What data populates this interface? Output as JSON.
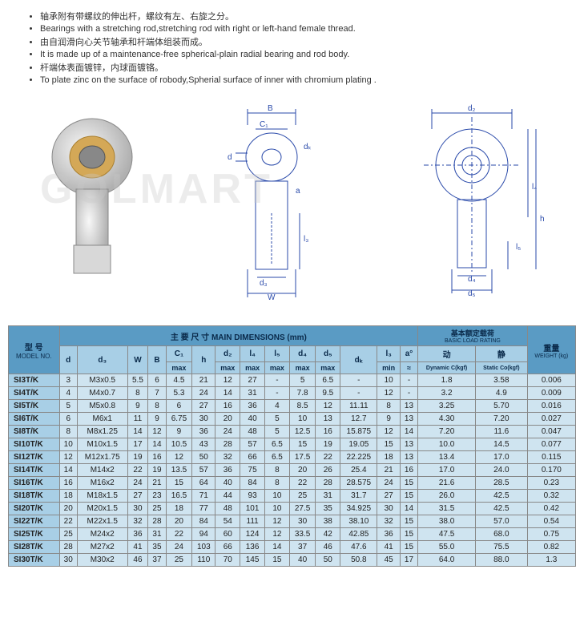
{
  "bullets": [
    "轴承附有带螺纹的伸出杆，螺纹有左、右旋之分。",
    "Bearings with a stretching rod,stretching rod with right or left-hand female thread.",
    "由自润滑向心关节轴承和杆端体组装而成。",
    "It is made up of a maintenance-free spherical-plain  radial bearing and rod body.",
    "杆端体表面镀锌，内球面镀铬。",
    "To plate zinc on the surface of robody,Spherial surface of inner with chromium plating ."
  ],
  "watermark": "GOLMART",
  "diagram_labels": {
    "b": "B",
    "c1": "C₁",
    "d": "d",
    "dk": "dₖ",
    "a": "a",
    "l3": "l₃",
    "d3": "d₃",
    "w": "W",
    "d2": "d₂",
    "l4": "l₄",
    "h": "h",
    "l5": "l₅",
    "d4": "d₄",
    "d5": "d₅"
  },
  "table": {
    "group_headers": {
      "model": "型 号",
      "model_sub": "MODEL NO.",
      "main": "主 要 尺 寸   MAIN DIMENSIONS  (mm)",
      "load": "基本额定载荷",
      "load_sub": "BASIC LOAD RATING",
      "weight": "重量",
      "weight_sub": "WEIGHT (kg)"
    },
    "cols": [
      "d",
      "d₃",
      "W",
      "B",
      "C₁",
      "h",
      "d₂",
      "l₄",
      "l₅",
      "d₄",
      "d₅",
      "dₖ",
      "l₃",
      "a°",
      "动",
      "静",
      ""
    ],
    "cols_sub": [
      "",
      "",
      "",
      "",
      "max",
      "",
      "max",
      "max",
      "max",
      "max",
      "max",
      "",
      "min",
      "≈",
      "Dynamic C(kgf)",
      "Static Co(kgf)",
      ""
    ],
    "load_cols": {
      "dyn": "动",
      "dyn_sub": "Dynamic C(kgf)",
      "stat": "静",
      "stat_sub": "Static Co(kgf)"
    },
    "rows": [
      {
        "m": "SI3T/K",
        "v": [
          "3",
          "M3x0.5",
          "5.5",
          "6",
          "4.5",
          "21",
          "12",
          "27",
          "-",
          "5",
          "6.5",
          "-",
          "10",
          "-",
          "1.8",
          "3.58",
          "0.006"
        ]
      },
      {
        "m": "SI4T/K",
        "v": [
          "4",
          "M4x0.7",
          "8",
          "7",
          "5.3",
          "24",
          "14",
          "31",
          "-",
          "7.8",
          "9.5",
          "-",
          "12",
          "-",
          "3.2",
          "4.9",
          "0.009"
        ]
      },
      {
        "m": "SI5T/K",
        "v": [
          "5",
          "M5x0.8",
          "9",
          "8",
          "6",
          "27",
          "16",
          "36",
          "4",
          "8.5",
          "12",
          "11.11",
          "8",
          "13",
          "3.25",
          "5.70",
          "0.016"
        ]
      },
      {
        "m": "SI6T/K",
        "v": [
          "6",
          "M6x1",
          "11",
          "9",
          "6.75",
          "30",
          "20",
          "40",
          "5",
          "10",
          "13",
          "12.7",
          "9",
          "13",
          "4.30",
          "7.20",
          "0.027"
        ]
      },
      {
        "m": "SI8T/K",
        "v": [
          "8",
          "M8x1.25",
          "14",
          "12",
          "9",
          "36",
          "24",
          "48",
          "5",
          "12.5",
          "16",
          "15.875",
          "12",
          "14",
          "7.20",
          "11.6",
          "0.047"
        ]
      },
      {
        "m": "SI10T/K",
        "v": [
          "10",
          "M10x1.5",
          "17",
          "14",
          "10.5",
          "43",
          "28",
          "57",
          "6.5",
          "15",
          "19",
          "19.05",
          "15",
          "13",
          "10.0",
          "14.5",
          "0.077"
        ]
      },
      {
        "m": "SI12T/K",
        "v": [
          "12",
          "M12x1.75",
          "19",
          "16",
          "12",
          "50",
          "32",
          "66",
          "6.5",
          "17.5",
          "22",
          "22.225",
          "18",
          "13",
          "13.4",
          "17.0",
          "0.115"
        ]
      },
      {
        "m": "SI14T/K",
        "v": [
          "14",
          "M14x2",
          "22",
          "19",
          "13.5",
          "57",
          "36",
          "75",
          "8",
          "20",
          "26",
          "25.4",
          "21",
          "16",
          "17.0",
          "24.0",
          "0.170"
        ]
      },
      {
        "m": "SI16T/K",
        "v": [
          "16",
          "M16x2",
          "24",
          "21",
          "15",
          "64",
          "40",
          "84",
          "8",
          "22",
          "28",
          "28.575",
          "24",
          "15",
          "21.6",
          "28.5",
          "0.23"
        ]
      },
      {
        "m": "SI18T/K",
        "v": [
          "18",
          "M18x1.5",
          "27",
          "23",
          "16.5",
          "71",
          "44",
          "93",
          "10",
          "25",
          "31",
          "31.7",
          "27",
          "15",
          "26.0",
          "42.5",
          "0.32"
        ]
      },
      {
        "m": "SI20T/K",
        "v": [
          "20",
          "M20x1.5",
          "30",
          "25",
          "18",
          "77",
          "48",
          "101",
          "10",
          "27.5",
          "35",
          "34.925",
          "30",
          "14",
          "31.5",
          "42.5",
          "0.42"
        ]
      },
      {
        "m": "SI22T/K",
        "v": [
          "22",
          "M22x1.5",
          "32",
          "28",
          "20",
          "84",
          "54",
          "111",
          "12",
          "30",
          "38",
          "38.10",
          "32",
          "15",
          "38.0",
          "57.0",
          "0.54"
        ]
      },
      {
        "m": "SI25T/K",
        "v": [
          "25",
          "M24x2",
          "36",
          "31",
          "22",
          "94",
          "60",
          "124",
          "12",
          "33.5",
          "42",
          "42.85",
          "36",
          "15",
          "47.5",
          "68.0",
          "0.75"
        ]
      },
      {
        "m": "SI28T/K",
        "v": [
          "28",
          "M27x2",
          "41",
          "35",
          "24",
          "103",
          "66",
          "136",
          "14",
          "37",
          "46",
          "47.6",
          "41",
          "15",
          "55.0",
          "75.5",
          "0.82"
        ]
      },
      {
        "m": "SI30T/K",
        "v": [
          "30",
          "M30x2",
          "46",
          "37",
          "25",
          "110",
          "70",
          "145",
          "15",
          "40",
          "50",
          "50.8",
          "45",
          "17",
          "64.0",
          "88.0",
          "1.3"
        ]
      }
    ]
  }
}
